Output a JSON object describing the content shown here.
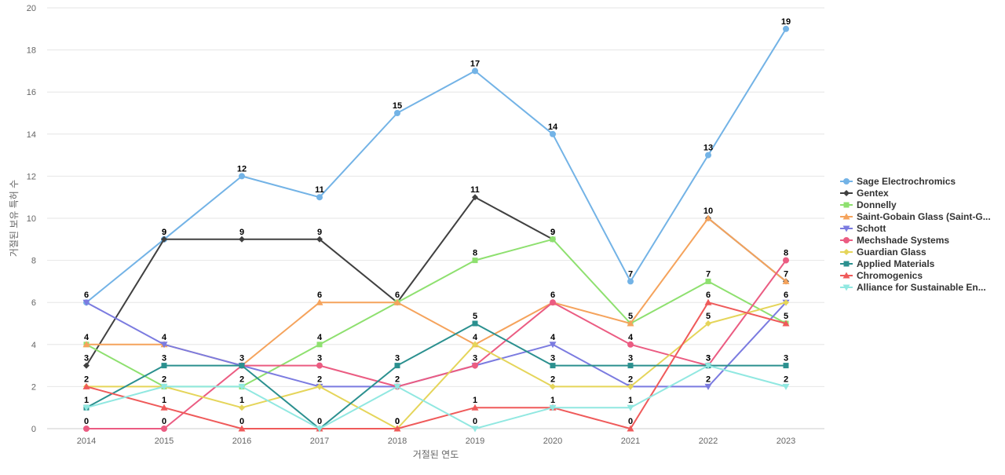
{
  "chart_data": {
    "type": "line",
    "title": "",
    "xlabel": "거절된 연도",
    "ylabel": "거절된 보유 특허 수",
    "categories": [
      "2014",
      "2015",
      "2016",
      "2017",
      "2018",
      "2019",
      "2020",
      "2021",
      "2022",
      "2023"
    ],
    "ylim": [
      0,
      20
    ],
    "yticks": [
      0,
      2,
      4,
      6,
      8,
      10,
      12,
      14,
      16,
      18,
      20
    ],
    "grid": true,
    "legend_position": "right",
    "series": [
      {
        "name": "Sage Electrochromics",
        "color": "#73b3e6",
        "marker": "circle",
        "values": [
          6,
          9,
          12,
          11,
          15,
          17,
          14,
          7,
          13,
          19
        ],
        "labels": [
          6,
          9,
          12,
          11,
          15,
          17,
          14,
          7,
          13,
          19
        ]
      },
      {
        "name": "Gentex",
        "color": "#404040",
        "marker": "diamond",
        "values": [
          3,
          9,
          9,
          9,
          6,
          11,
          9,
          null,
          10,
          7
        ],
        "labels": [
          3,
          9,
          9,
          9,
          6,
          11,
          9,
          null,
          10,
          7
        ]
      },
      {
        "name": "Donnelly",
        "color": "#8ee06f",
        "marker": "square",
        "values": [
          4,
          2,
          2,
          4,
          6,
          8,
          9,
          5,
          7,
          5
        ],
        "labels": [
          4,
          null,
          2,
          4,
          null,
          8,
          9,
          null,
          7,
          null
        ]
      },
      {
        "name": "Saint-Gobain Glass (Saint-G...",
        "color": "#f5a35c",
        "marker": "triangle",
        "values": [
          4,
          4,
          3,
          6,
          6,
          4,
          6,
          5,
          10,
          7
        ],
        "labels": [
          null,
          null,
          null,
          6,
          null,
          null,
          null,
          5,
          null,
          null
        ]
      },
      {
        "name": "Schott",
        "color": "#7b7be0",
        "marker": "triangle-down",
        "values": [
          6,
          4,
          3,
          2,
          2,
          3,
          4,
          2,
          2,
          6
        ],
        "labels": [
          null,
          4,
          null,
          null,
          null,
          null,
          4,
          2,
          2,
          null
        ]
      },
      {
        "name": "Mechshade Systems",
        "color": "#eb5c82",
        "marker": "circle",
        "values": [
          0,
          0,
          3,
          3,
          2,
          3,
          6,
          4,
          3,
          8
        ],
        "labels": [
          0,
          0,
          null,
          3,
          null,
          3,
          6,
          4,
          null,
          8
        ]
      },
      {
        "name": "Guardian Glass",
        "color": "#e5d55a",
        "marker": "diamond",
        "values": [
          2,
          2,
          1,
          2,
          0,
          4,
          2,
          2,
          5,
          6
        ],
        "labels": [
          2,
          2,
          1,
          2,
          0,
          4,
          2,
          null,
          5,
          6
        ]
      },
      {
        "name": "Applied Materials",
        "color": "#2b908f",
        "marker": "square",
        "values": [
          1,
          3,
          3,
          0,
          3,
          5,
          3,
          3,
          3,
          3
        ],
        "labels": [
          1,
          3,
          3,
          0,
          3,
          5,
          3,
          3,
          3,
          3
        ]
      },
      {
        "name": "Chromogenics",
        "color": "#ef5a5a",
        "marker": "triangle",
        "values": [
          2,
          1,
          0,
          0,
          0,
          1,
          1,
          0,
          6,
          5
        ],
        "labels": [
          null,
          1,
          0,
          null,
          0,
          1,
          1,
          0,
          6,
          5
        ]
      },
      {
        "name": "Alliance for Sustainable En...",
        "color": "#91e8e1",
        "marker": "triangle-down",
        "values": [
          1,
          2,
          2,
          0,
          2,
          0,
          1,
          1,
          3,
          2
        ],
        "labels": [
          null,
          null,
          null,
          null,
          2,
          0,
          null,
          1,
          3,
          2
        ]
      }
    ]
  }
}
